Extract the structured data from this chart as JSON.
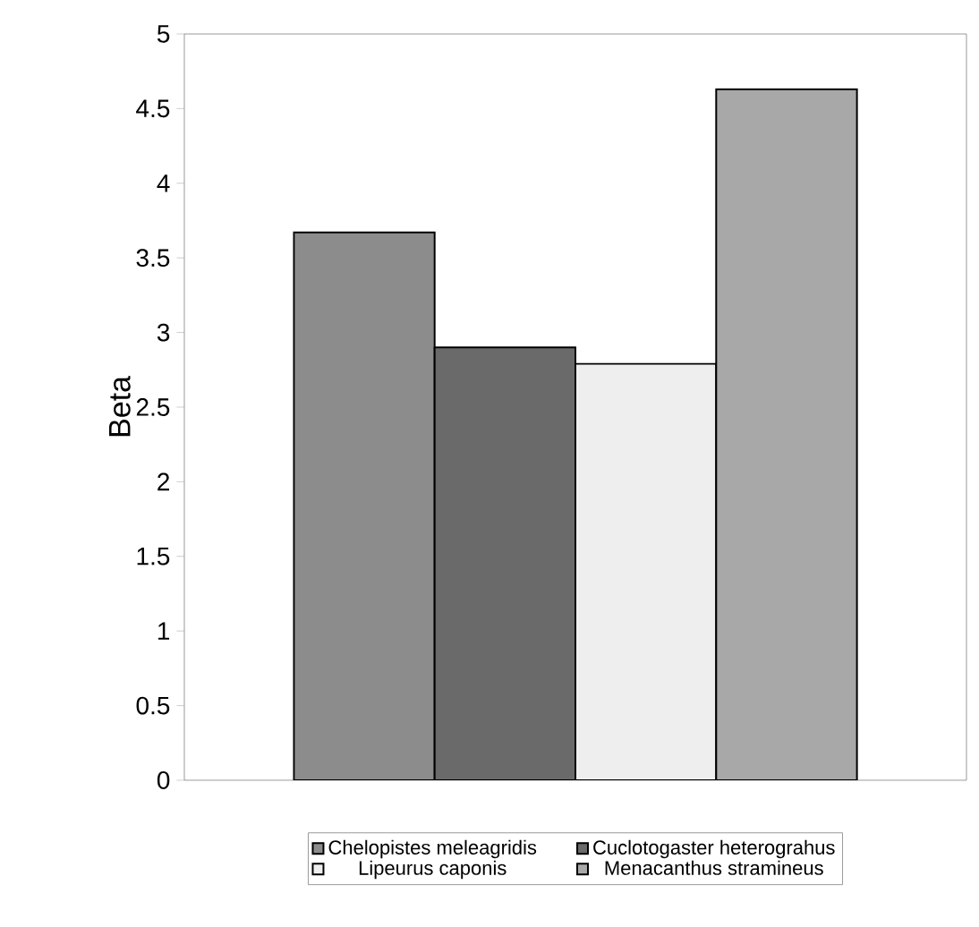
{
  "chart_data": {
    "type": "bar",
    "ylabel": "Beta",
    "categories": [
      null
    ],
    "series": [
      {
        "name": "Chelopistes meleagridis",
        "color": "#8c8c8c",
        "values": [
          3.67
        ]
      },
      {
        "name": "Cuclotogaster heterograhus",
        "color": "#6a6a6a",
        "values": [
          2.9
        ]
      },
      {
        "name": "Lipeurus caponis",
        "color": "#eeeeee",
        "values": [
          2.79
        ]
      },
      {
        "name": "Menacanthus stramineus",
        "color": "#a8a8a8",
        "values": [
          4.63
        ]
      }
    ],
    "ylim": [
      0,
      5
    ],
    "yticks": [
      0,
      0.5,
      1,
      1.5,
      2,
      2.5,
      3,
      3.5,
      4,
      4.5,
      5
    ],
    "legend": "bottom"
  }
}
